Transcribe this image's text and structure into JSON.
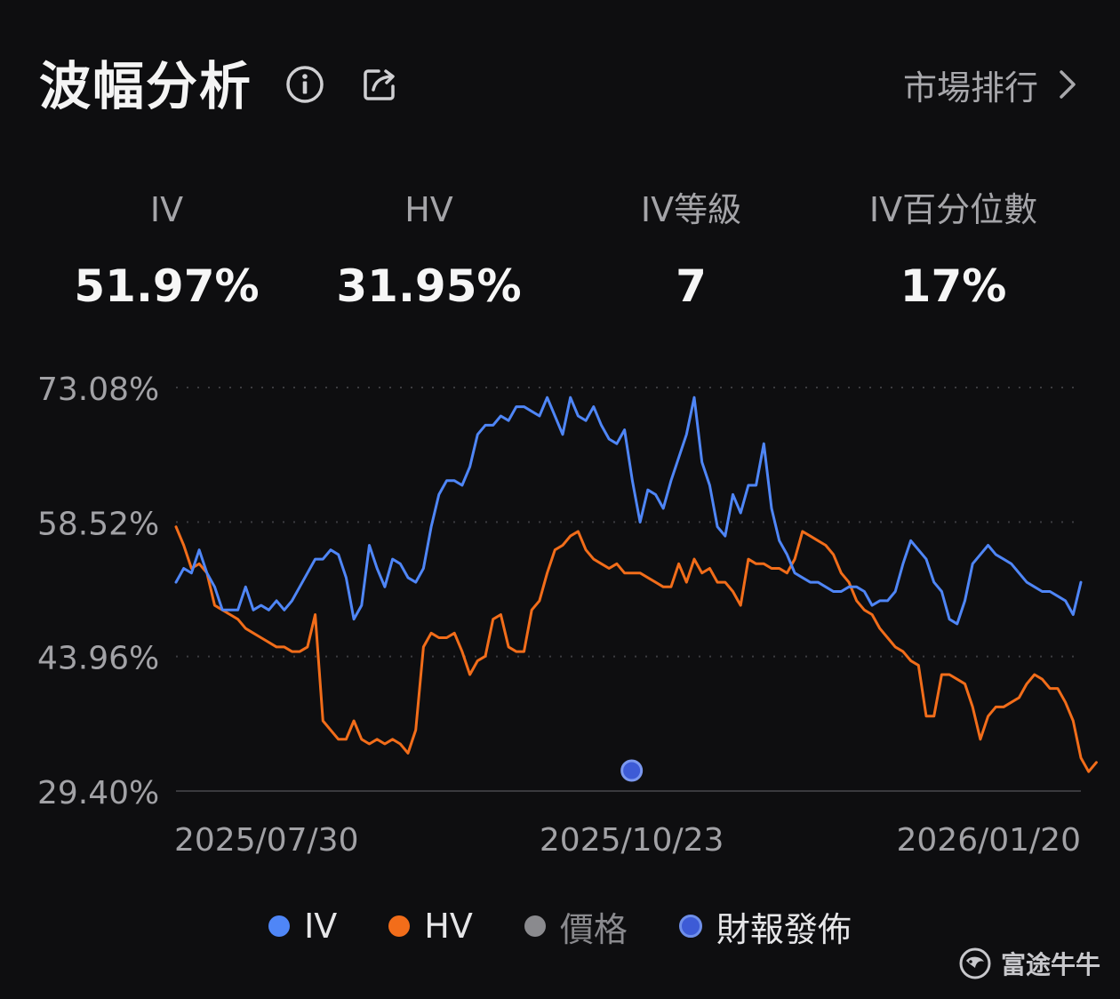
{
  "header": {
    "title": "波幅分析",
    "market_link": "市場排行"
  },
  "stats": [
    {
      "label": "IV",
      "value": "51.97%"
    },
    {
      "label": "HV",
      "value": "31.95%"
    },
    {
      "label": "IV等級",
      "value": "7"
    },
    {
      "label": "IV百分位數",
      "value": "17%"
    }
  ],
  "legend": [
    {
      "label": "IV",
      "color": "#4f86f7"
    },
    {
      "label": "HV",
      "color": "#f26d1a"
    },
    {
      "label": "價格",
      "color": "#8a8a8e"
    },
    {
      "label": "財報發佈",
      "color": "#3d5bd6"
    }
  ],
  "watermark": "富途牛牛",
  "chart_data": {
    "type": "line",
    "y_ticks": [
      "73.08%",
      "58.52%",
      "43.96%",
      "29.40%"
    ],
    "ylim": [
      29.4,
      73.08
    ],
    "x_ticks": [
      {
        "label": "2025/07/30",
        "index": 0
      },
      {
        "label": "2025/10/23",
        "index": 58
      },
      {
        "label": "2026/01/20",
        "index": 117
      }
    ],
    "grid": true,
    "legend_position": "bottom",
    "earnings_index": 58,
    "series": [
      {
        "name": "IV",
        "color": "#4f86f7",
        "values": [
          52.0,
          53.5,
          53.0,
          55.5,
          53.0,
          51.5,
          49.0,
          49.0,
          49.0,
          51.5,
          49.0,
          49.5,
          49.0,
          50.0,
          49.0,
          50.0,
          51.5,
          53.0,
          54.5,
          54.5,
          55.5,
          55.0,
          52.5,
          48.0,
          49.5,
          56.0,
          53.5,
          51.5,
          54.5,
          54.0,
          52.5,
          52.0,
          53.5,
          58.0,
          61.5,
          63.0,
          63.0,
          62.5,
          64.5,
          68.0,
          69.0,
          69.0,
          70.0,
          69.5,
          71.0,
          71.0,
          70.5,
          70.0,
          72.0,
          70.0,
          68.0,
          72.0,
          70.0,
          69.5,
          71.0,
          69.0,
          67.5,
          67.0,
          68.5,
          63.0,
          58.5,
          62.0,
          61.5,
          60.0,
          63.0,
          65.5,
          68.0,
          72.0,
          65.0,
          62.5,
          58.0,
          57.0,
          61.5,
          59.5,
          62.5,
          62.5,
          67.0,
          60.0,
          56.5,
          55.0,
          53.0,
          52.5,
          52.0,
          52.0,
          51.5,
          51.0,
          51.0,
          51.5,
          51.5,
          51.0,
          49.5,
          50.0,
          50.0,
          51.0,
          54.0,
          56.5,
          55.5,
          54.5,
          52.0,
          51.0,
          48.0,
          47.5,
          50.0,
          54.0,
          55.0,
          56.0,
          55.0,
          54.5,
          54.0,
          53.0,
          52.0,
          51.5,
          51.0,
          51.0,
          50.5,
          50.0,
          48.5,
          52.0
        ]
      },
      {
        "name": "HV",
        "color": "#f26d1a",
        "values": [
          58.0,
          56.0,
          53.5,
          54.0,
          53.0,
          49.5,
          49.0,
          48.5,
          48.0,
          47.0,
          46.5,
          46.0,
          45.5,
          45.0,
          45.0,
          44.5,
          44.5,
          45.0,
          48.5,
          37.0,
          36.0,
          35.0,
          35.0,
          37.0,
          35.0,
          34.5,
          35.0,
          34.5,
          35.0,
          34.5,
          33.5,
          36.0,
          45.0,
          46.5,
          46.0,
          46.0,
          46.5,
          44.5,
          42.0,
          43.5,
          44.0,
          48.0,
          48.5,
          45.0,
          44.5,
          44.5,
          49.0,
          50.0,
          53.0,
          55.5,
          56.0,
          57.0,
          57.5,
          55.5,
          54.5,
          54.0,
          53.5,
          54.0,
          53.0,
          53.0,
          53.0,
          52.5,
          52.0,
          51.5,
          51.5,
          54.0,
          52.0,
          54.5,
          53.0,
          53.5,
          52.0,
          52.0,
          51.0,
          49.5,
          54.5,
          54.0,
          54.0,
          53.5,
          53.5,
          53.0,
          54.5,
          57.5,
          57.0,
          56.5,
          56.0,
          55.0,
          53.0,
          52.0,
          50.0,
          49.0,
          48.5,
          47.0,
          46.0,
          45.0,
          44.5,
          43.5,
          43.0,
          37.5,
          37.5,
          42.0,
          42.0,
          41.5,
          41.0,
          38.5,
          35.0,
          37.5,
          38.5,
          38.5,
          39.0,
          39.5,
          41.0,
          42.0,
          41.5,
          40.5,
          40.5,
          39.0,
          37.0,
          33.0,
          31.5,
          32.5
        ]
      }
    ]
  }
}
